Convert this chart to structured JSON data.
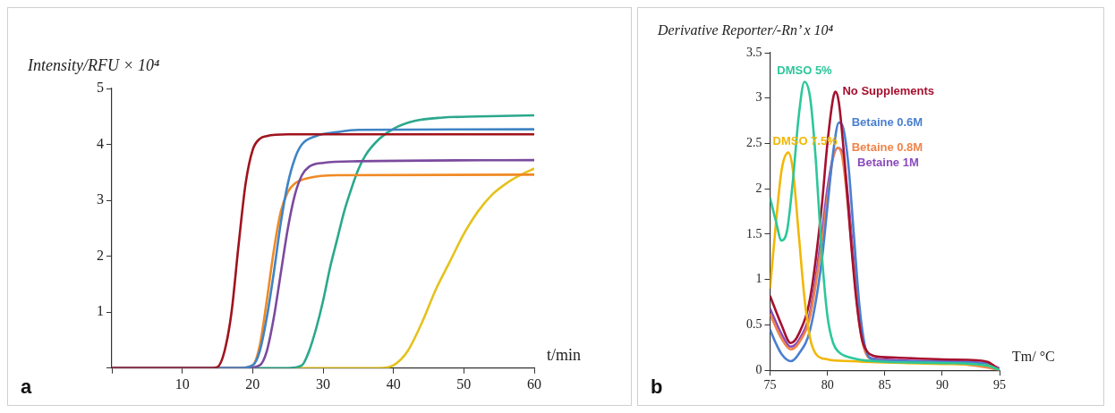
{
  "chart_data": [
    {
      "type": "line",
      "xlabel": "t/min",
      "ylabel": "Intensity/RFU × 10⁴",
      "annotations": [
        "a"
      ],
      "xlim": [
        0,
        60
      ],
      "ylim": [
        0,
        5
      ],
      "xticks": [
        {
          "value": 0,
          "label": null
        },
        10,
        20,
        30,
        40,
        50,
        60
      ],
      "yticks": [
        {
          "value": 0,
          "label": null
        },
        1,
        2,
        3,
        4,
        5
      ],
      "series": [
        {
          "color": "#a0131c",
          "x": [
            0,
            14,
            15,
            16,
            17,
            18,
            19,
            20,
            21,
            22,
            25,
            60
          ],
          "values": [
            0,
            0,
            0.02,
            0.3,
            1.0,
            2.2,
            3.3,
            3.9,
            4.1,
            4.15,
            4.18,
            4.18
          ]
        },
        {
          "color": "#3f84c4",
          "x": [
            0,
            18,
            20,
            21,
            22,
            23,
            24,
            25,
            26,
            27,
            29,
            32,
            35,
            60
          ],
          "values": [
            0,
            0,
            0.05,
            0.3,
            0.9,
            1.7,
            2.6,
            3.3,
            3.75,
            4.0,
            4.15,
            4.22,
            4.26,
            4.27
          ]
        },
        {
          "color": "#7b4a9e",
          "x": [
            0,
            19,
            21,
            22,
            23,
            24,
            25,
            26,
            27,
            28,
            30,
            35,
            60
          ],
          "values": [
            0,
            0,
            0.05,
            0.3,
            0.9,
            1.7,
            2.5,
            3.1,
            3.45,
            3.6,
            3.67,
            3.7,
            3.72
          ]
        },
        {
          "color": "#f08a24",
          "x": [
            0,
            18,
            20,
            21,
            22,
            23,
            24,
            25,
            26,
            28,
            32,
            60
          ],
          "values": [
            0,
            0,
            0.05,
            0.4,
            1.2,
            2.1,
            2.8,
            3.15,
            3.3,
            3.4,
            3.45,
            3.46
          ]
        },
        {
          "color": "#2aa88c",
          "x": [
            0,
            25,
            27,
            28,
            29,
            30,
            31,
            32,
            33,
            34,
            35,
            36,
            38,
            40,
            43,
            47,
            52,
            60
          ],
          "values": [
            0,
            0,
            0.05,
            0.3,
            0.7,
            1.2,
            1.8,
            2.3,
            2.8,
            3.2,
            3.55,
            3.8,
            4.1,
            4.28,
            4.42,
            4.48,
            4.5,
            4.52
          ]
        },
        {
          "color": "#e5c21c",
          "x": [
            26,
            38,
            40,
            42,
            44,
            46,
            48,
            50,
            52,
            54,
            56,
            58,
            60
          ],
          "values": [
            0,
            0,
            0.05,
            0.3,
            0.8,
            1.4,
            1.9,
            2.4,
            2.8,
            3.1,
            3.3,
            3.45,
            3.57
          ]
        }
      ]
    },
    {
      "type": "line",
      "xlabel": "Tm/ °C",
      "ylabel": "Derivative Reporter/-Rn’ x 10⁴",
      "annotations": [
        "b"
      ],
      "xlim": [
        75,
        95
      ],
      "ylim": [
        0,
        3.5
      ],
      "xticks": [
        75,
        80,
        85,
        90,
        95
      ],
      "yticks": [
        0,
        0.5,
        1,
        1.5,
        2,
        2.5,
        3,
        3.5
      ],
      "series": [
        {
          "name": "DMSO 5%",
          "color": "#2cc79a",
          "x": [
            75,
            75.5,
            76,
            76.5,
            77,
            77.5,
            78,
            78.5,
            79,
            79.5,
            80,
            80.5,
            81,
            82,
            84,
            90,
            94,
            95
          ],
          "values": [
            1.9,
            1.65,
            1.43,
            1.55,
            2.1,
            2.8,
            3.18,
            3.0,
            2.3,
            1.3,
            0.6,
            0.3,
            0.2,
            0.14,
            0.1,
            0.08,
            0.05,
            0
          ]
        },
        {
          "name": "DMSO 7.5%",
          "color": "#f2b705",
          "x": [
            75,
            75.5,
            76,
            76.6,
            77,
            77.5,
            78,
            78.5,
            79,
            80,
            82,
            90,
            94,
            95
          ],
          "values": [
            0.9,
            1.6,
            2.2,
            2.4,
            2.2,
            1.5,
            0.8,
            0.35,
            0.18,
            0.12,
            0.1,
            0.07,
            0.05,
            0
          ]
        },
        {
          "name": "No Supplements",
          "color": "#a5102e",
          "x": [
            75,
            76,
            76.8,
            77.5,
            78.5,
            79.5,
            80,
            80.5,
            80.7,
            81,
            81.5,
            82,
            82.5,
            83,
            83.5,
            84,
            86,
            90,
            93,
            94,
            95
          ],
          "values": [
            0.82,
            0.5,
            0.3,
            0.4,
            0.8,
            1.8,
            2.5,
            3.0,
            3.07,
            2.95,
            2.3,
            1.5,
            0.8,
            0.35,
            0.2,
            0.16,
            0.14,
            0.12,
            0.11,
            0.09,
            0
          ]
        },
        {
          "name": "Betaine 0.6M",
          "color": "#4a7fd0",
          "x": [
            75,
            75.5,
            76,
            76.8,
            77.5,
            78.5,
            79.5,
            80,
            80.5,
            81,
            81.3,
            81.8,
            82.3,
            82.8,
            83.3,
            84,
            86,
            90,
            94,
            95
          ],
          "values": [
            0.45,
            0.3,
            0.18,
            0.1,
            0.18,
            0.45,
            1.2,
            1.8,
            2.4,
            2.73,
            2.7,
            2.3,
            1.5,
            0.7,
            0.25,
            0.12,
            0.1,
            0.09,
            0.07,
            0
          ]
        },
        {
          "name": "Betaine 0.8M",
          "color": "#f0844a",
          "x": [
            75,
            76,
            76.8,
            77.5,
            78.5,
            79.5,
            80,
            80.5,
            80.9,
            81.3,
            81.8,
            82.3,
            82.8,
            83.3,
            84,
            90,
            94,
            95
          ],
          "values": [
            0.62,
            0.35,
            0.23,
            0.3,
            0.6,
            1.4,
            1.9,
            2.35,
            2.45,
            2.35,
            1.8,
            1.1,
            0.5,
            0.2,
            0.12,
            0.08,
            0.03,
            0
          ]
        },
        {
          "name": "Betaine 1M",
          "color": "#8a4bbd",
          "x": [
            75,
            76,
            76.8,
            77.5,
            78.5,
            79.5,
            80,
            80.5,
            80.9,
            81.3,
            81.8,
            82.3,
            82.8,
            83.3,
            84,
            90,
            94,
            95
          ],
          "values": [
            0.68,
            0.4,
            0.26,
            0.33,
            0.65,
            1.5,
            2.0,
            2.35,
            2.45,
            2.4,
            1.9,
            1.2,
            0.55,
            0.22,
            0.13,
            0.1,
            0.07,
            0.02
          ]
        }
      ]
    }
  ]
}
